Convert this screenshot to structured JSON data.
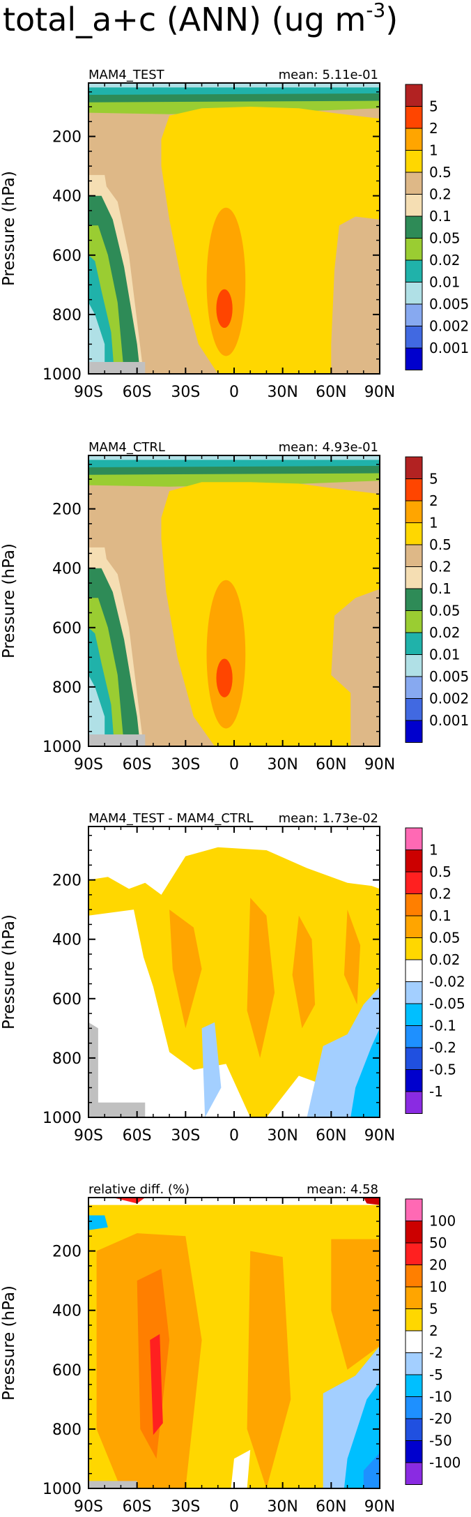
{
  "title": "total_a+c (ANN) (ug m",
  "title_exponent": "-3",
  "title_close": ")",
  "chart_data": [
    {
      "type": "heatmap",
      "panel_label": "MAM4_TEST",
      "mean_label": "mean: 5.11e-01",
      "ylabel": "Pressure (hPa)",
      "x_ticks": [
        "90S",
        "60S",
        "30S",
        "0",
        "30N",
        "60N",
        "90N"
      ],
      "y_ticks": [
        "200",
        "400",
        "600",
        "800",
        "1000"
      ],
      "xlim": [
        -90,
        90
      ],
      "ylim": [
        1000,
        20
      ],
      "colorbar_labels": [
        "5",
        "2",
        "1",
        "0.5",
        "0.2",
        "0.1",
        "0.05",
        "0.02",
        "0.01",
        "0.005",
        "0.002",
        "0.001"
      ],
      "colorbar_colors": [
        "#b22222",
        "#ff4500",
        "#ffa500",
        "#ffd700",
        "#deb887",
        "#f5deb3",
        "#2e8b57",
        "#9acd32",
        "#20b2aa",
        "#b0e0e6",
        "#87a9f0",
        "#4169e1",
        "#0000cd"
      ]
    },
    {
      "type": "heatmap",
      "panel_label": "MAM4_CTRL",
      "mean_label": "mean: 4.93e-01",
      "ylabel": "Pressure (hPa)",
      "x_ticks": [
        "90S",
        "60S",
        "30S",
        "0",
        "30N",
        "60N",
        "90N"
      ],
      "y_ticks": [
        "200",
        "400",
        "600",
        "800",
        "1000"
      ],
      "xlim": [
        -90,
        90
      ],
      "ylim": [
        1000,
        20
      ],
      "colorbar_labels": [
        "5",
        "2",
        "1",
        "0.5",
        "0.2",
        "0.1",
        "0.05",
        "0.02",
        "0.01",
        "0.005",
        "0.002",
        "0.001"
      ],
      "colorbar_colors": [
        "#b22222",
        "#ff4500",
        "#ffa500",
        "#ffd700",
        "#deb887",
        "#f5deb3",
        "#2e8b57",
        "#9acd32",
        "#20b2aa",
        "#b0e0e6",
        "#87a9f0",
        "#4169e1",
        "#0000cd"
      ]
    },
    {
      "type": "heatmap",
      "panel_label": "MAM4_TEST - MAM4_CTRL",
      "mean_label": "mean: 1.73e-02",
      "ylabel": "Pressure (hPa)",
      "x_ticks": [
        "90S",
        "60S",
        "30S",
        "0",
        "30N",
        "60N",
        "90N"
      ],
      "y_ticks": [
        "200",
        "400",
        "600",
        "800",
        "1000"
      ],
      "xlim": [
        -90,
        90
      ],
      "ylim": [
        1000,
        20
      ],
      "colorbar_labels": [
        "1",
        "0.5",
        "0.2",
        "0.1",
        "0.05",
        "0.02",
        "-0.02",
        "-0.05",
        "-0.1",
        "-0.2",
        "-0.5",
        "-1"
      ],
      "colorbar_colors": [
        "#ff69b4",
        "#cc0000",
        "#ff2020",
        "#ff7f00",
        "#ffa500",
        "#ffd700",
        "#ffffff",
        "#a3cfff",
        "#00bfff",
        "#1e90ff",
        "#2050e0",
        "#0000cd",
        "#8a2be2"
      ]
    },
    {
      "type": "heatmap",
      "panel_label": "relative diff. (%)",
      "mean_label": "mean:  4.58",
      "ylabel": "Pressure (hPa)",
      "x_ticks": [
        "90S",
        "60S",
        "30S",
        "0",
        "30N",
        "60N",
        "90N"
      ],
      "y_ticks": [
        "200",
        "400",
        "600",
        "800",
        "1000"
      ],
      "xlim": [
        -90,
        90
      ],
      "ylim": [
        1000,
        20
      ],
      "colorbar_labels": [
        "100",
        "50",
        "20",
        "10",
        "5",
        "2",
        "-2",
        "-5",
        "-10",
        "-20",
        "-50",
        "-100"
      ],
      "colorbar_colors": [
        "#ff69b4",
        "#cc0000",
        "#ff2020",
        "#ff7f00",
        "#ffa500",
        "#ffd700",
        "#ffffff",
        "#a3cfff",
        "#00bfff",
        "#1e90ff",
        "#2050e0",
        "#0000cd",
        "#8a2be2"
      ]
    }
  ]
}
